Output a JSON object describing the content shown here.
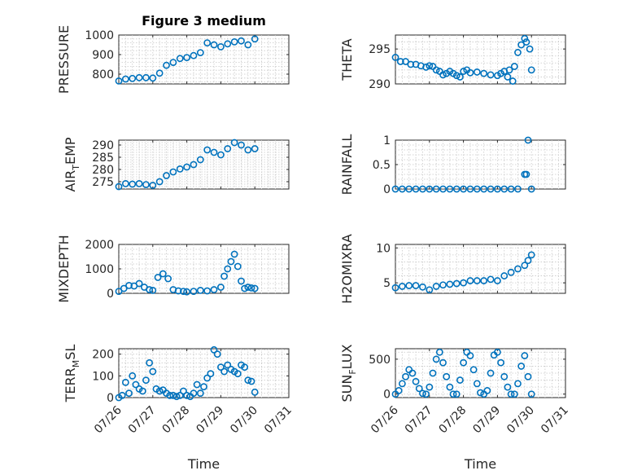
{
  "colors": {
    "marker": "#0072BD",
    "axis": "#262626",
    "grid": "#c8c8c8"
  },
  "chart_data": [
    {
      "type": "scatter",
      "title": "Figure 3 medium",
      "xlabel": "",
      "ylabel": "PRESSURE",
      "xlim": [
        0,
        5
      ],
      "ylim": [
        750,
        1000
      ],
      "yticks": [
        800,
        900,
        1000
      ],
      "ytick_labels": [
        "800",
        "900",
        "1000"
      ],
      "xticks": [
        0,
        1,
        2,
        3,
        4,
        5
      ],
      "xtick_labels": [],
      "x": [
        0,
        0.2,
        0.4,
        0.6,
        0.8,
        1.0,
        1.2,
        1.4,
        1.6,
        1.8,
        2.0,
        2.2,
        2.4,
        2.6,
        2.8,
        3.0,
        3.2,
        3.4,
        3.6,
        3.8,
        4.0
      ],
      "y": [
        765,
        775,
        778,
        782,
        782,
        780,
        805,
        845,
        860,
        880,
        885,
        895,
        910,
        960,
        950,
        940,
        955,
        965,
        970,
        950,
        980
      ]
    },
    {
      "type": "scatter",
      "title": "",
      "xlabel": "",
      "ylabel": "THETA",
      "xlim": [
        0,
        5
      ],
      "ylim": [
        290,
        297
      ],
      "yticks": [
        290,
        295
      ],
      "ytick_labels": [
        "290",
        "295"
      ],
      "xticks": [
        0,
        1,
        2,
        3,
        4,
        5
      ],
      "xtick_labels": [],
      "x": [
        0,
        0.15,
        0.3,
        0.45,
        0.6,
        0.75,
        0.9,
        1.0,
        1.1,
        1.2,
        1.3,
        1.4,
        1.5,
        1.6,
        1.7,
        1.8,
        1.9,
        2.0,
        2.1,
        2.2,
        2.4,
        2.6,
        2.8,
        3.0,
        3.1,
        3.2,
        3.3,
        3.35,
        3.45,
        3.5,
        3.6,
        3.7,
        3.8,
        3.85,
        3.95,
        4.0
      ],
      "y": [
        293.8,
        293.2,
        293.2,
        292.8,
        292.8,
        292.6,
        292.4,
        292.6,
        292.5,
        292.0,
        291.8,
        291.3,
        291.5,
        291.8,
        291.5,
        291.2,
        291.0,
        291.8,
        292.0,
        291.6,
        291.7,
        291.5,
        291.3,
        291.2,
        291.5,
        291.8,
        291.0,
        292.0,
        290.4,
        292.5,
        294.5,
        295.6,
        296.5,
        296.0,
        295.0,
        292.0
      ]
    },
    {
      "type": "scatter",
      "title": "",
      "xlabel": "",
      "ylabel": "AIR_TEMP",
      "xlim": [
        0,
        5
      ],
      "ylim": [
        272,
        292
      ],
      "yticks": [
        275,
        280,
        285,
        290
      ],
      "ytick_labels": [
        "275",
        "280",
        "285",
        "290"
      ],
      "xticks": [
        0,
        1,
        2,
        3,
        4,
        5
      ],
      "xtick_labels": [],
      "x": [
        0,
        0.2,
        0.4,
        0.6,
        0.8,
        1.0,
        1.2,
        1.4,
        1.6,
        1.8,
        2.0,
        2.2,
        2.4,
        2.6,
        2.8,
        3.0,
        3.2,
        3.4,
        3.6,
        3.8,
        4.0
      ],
      "y": [
        273,
        274.2,
        274,
        274.2,
        273.8,
        273.5,
        275,
        277.5,
        279,
        280.2,
        281,
        282,
        284,
        288,
        287,
        286,
        288.5,
        291,
        290,
        288,
        288.5
      ]
    },
    {
      "type": "scatter",
      "title": "",
      "xlabel": "",
      "ylabel": "RAINFALL",
      "xlim": [
        0,
        5
      ],
      "ylim": [
        0,
        1
      ],
      "yticks": [
        0,
        0.5,
        1
      ],
      "ytick_labels": [
        "0",
        "0.5",
        "1"
      ],
      "xticks": [
        0,
        1,
        2,
        3,
        4,
        5
      ],
      "xtick_labels": [],
      "x": [
        0,
        0.2,
        0.4,
        0.6,
        0.8,
        1.0,
        1.2,
        1.4,
        1.6,
        1.8,
        2.0,
        2.2,
        2.4,
        2.6,
        2.8,
        3.0,
        3.2,
        3.4,
        3.6,
        3.8,
        3.85,
        3.9,
        4.0
      ],
      "y": [
        0,
        0,
        0,
        0,
        0,
        0,
        0,
        0,
        0,
        0,
        0,
        0,
        0,
        0,
        0,
        0,
        0,
        0,
        0,
        0.3,
        0.3,
        1.0,
        0
      ]
    },
    {
      "type": "scatter",
      "title": "",
      "xlabel": "",
      "ylabel": "MIXDEPTH",
      "xlim": [
        0,
        5
      ],
      "ylim": [
        0,
        2000
      ],
      "yticks": [
        0,
        1000,
        2000
      ],
      "ytick_labels": [
        "0",
        "1000",
        "2000"
      ],
      "xticks": [
        0,
        1,
        2,
        3,
        4,
        5
      ],
      "xtick_labels": [],
      "x": [
        0,
        0.15,
        0.3,
        0.45,
        0.6,
        0.75,
        0.9,
        1.0,
        1.15,
        1.3,
        1.45,
        1.6,
        1.75,
        1.9,
        2.0,
        2.2,
        2.4,
        2.6,
        2.8,
        3.0,
        3.1,
        3.2,
        3.3,
        3.4,
        3.5,
        3.6,
        3.7,
        3.8,
        3.9,
        4.0
      ],
      "y": [
        80,
        200,
        320,
        300,
        400,
        250,
        150,
        120,
        650,
        800,
        600,
        150,
        100,
        80,
        60,
        80,
        120,
        100,
        150,
        250,
        700,
        1000,
        1300,
        1600,
        1100,
        500,
        200,
        250,
        220,
        200
      ]
    },
    {
      "type": "scatter",
      "title": "",
      "xlabel": "",
      "ylabel": "H2OMIXRA",
      "xlim": [
        0,
        5
      ],
      "ylim": [
        3.5,
        10.5
      ],
      "yticks": [
        5,
        10
      ],
      "ytick_labels": [
        "5",
        "10"
      ],
      "xticks": [
        0,
        1,
        2,
        3,
        4,
        5
      ],
      "xtick_labels": [],
      "x": [
        0,
        0.2,
        0.4,
        0.6,
        0.8,
        1.0,
        1.2,
        1.4,
        1.6,
        1.8,
        2.0,
        2.2,
        2.4,
        2.6,
        2.8,
        3.0,
        3.2,
        3.4,
        3.6,
        3.8,
        3.9,
        4.0
      ],
      "y": [
        4.3,
        4.5,
        4.6,
        4.6,
        4.4,
        4.0,
        4.5,
        4.7,
        4.8,
        4.9,
        5.0,
        5.3,
        5.3,
        5.3,
        5.5,
        5.3,
        6.0,
        6.5,
        7.0,
        7.5,
        8.2,
        9.0
      ]
    },
    {
      "type": "scatter",
      "title": "",
      "xlabel": "Time",
      "ylabel": "TERR_MSL",
      "xlim": [
        0,
        5
      ],
      "ylim": [
        0,
        225
      ],
      "yticks": [
        0,
        100,
        200
      ],
      "ytick_labels": [
        "0",
        "100",
        "200"
      ],
      "xticks": [
        0,
        1,
        2,
        3,
        4,
        5
      ],
      "xtick_labels": [
        "07/26",
        "07/27",
        "07/28",
        "07/29",
        "07/30",
        "07/31"
      ],
      "x": [
        0,
        0.1,
        0.2,
        0.3,
        0.4,
        0.5,
        0.6,
        0.7,
        0.8,
        0.9,
        1.0,
        1.1,
        1.2,
        1.3,
        1.4,
        1.5,
        1.6,
        1.7,
        1.8,
        1.9,
        2.0,
        2.1,
        2.2,
        2.3,
        2.4,
        2.5,
        2.6,
        2.7,
        2.8,
        2.9,
        3.0,
        3.1,
        3.2,
        3.3,
        3.4,
        3.5,
        3.6,
        3.7,
        3.8,
        3.9,
        4.0
      ],
      "y": [
        0,
        10,
        70,
        20,
        100,
        60,
        40,
        30,
        80,
        160,
        120,
        40,
        30,
        35,
        20,
        10,
        10,
        5,
        10,
        30,
        10,
        5,
        20,
        60,
        20,
        50,
        90,
        110,
        220,
        200,
        140,
        120,
        150,
        130,
        120,
        110,
        150,
        140,
        80,
        75,
        25
      ]
    },
    {
      "type": "scatter",
      "title": "",
      "xlabel": "Time",
      "ylabel": "SUN_FLUX",
      "xlim": [
        0,
        5
      ],
      "ylim": [
        -50,
        650
      ],
      "yticks": [
        0,
        500
      ],
      "ytick_labels": [
        "0",
        "500"
      ],
      "xticks": [
        0,
        1,
        2,
        3,
        4,
        5
      ],
      "xtick_labels": [
        "07/26",
        "07/27",
        "07/28",
        "07/29",
        "07/30",
        "07/31"
      ],
      "x": [
        0,
        0.1,
        0.2,
        0.3,
        0.4,
        0.5,
        0.6,
        0.7,
        0.8,
        0.9,
        1.0,
        1.1,
        1.2,
        1.3,
        1.4,
        1.5,
        1.6,
        1.7,
        1.8,
        1.9,
        2.0,
        2.1,
        2.2,
        2.3,
        2.4,
        2.5,
        2.6,
        2.7,
        2.8,
        2.9,
        3.0,
        3.1,
        3.2,
        3.3,
        3.4,
        3.5,
        3.6,
        3.7,
        3.8,
        3.9,
        4.0
      ],
      "y": [
        0,
        50,
        150,
        250,
        350,
        300,
        180,
        80,
        10,
        0,
        100,
        300,
        500,
        600,
        450,
        250,
        100,
        0,
        0,
        200,
        450,
        600,
        550,
        350,
        150,
        20,
        0,
        50,
        300,
        560,
        600,
        450,
        250,
        100,
        0,
        0,
        150,
        400,
        550,
        250,
        0
      ]
    }
  ]
}
